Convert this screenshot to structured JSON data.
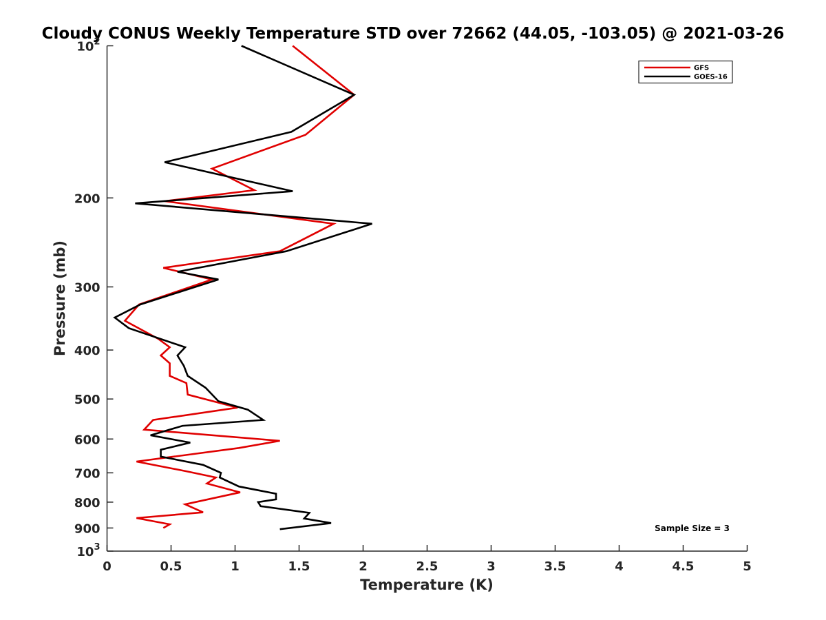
{
  "chart_data": {
    "type": "line",
    "title": "Cloudy CONUS Weekly Temperature STD over 72662 (44.05, -103.05) @ 2021-03-26",
    "xlabel": "Temperature (K)",
    "ylabel": "Pressure (mb)",
    "xlim": [
      0,
      5
    ],
    "ylim": [
      1000,
      100
    ],
    "y_scale": "log",
    "y_reversed": true,
    "grid": false,
    "legend_position": "top-right",
    "x_ticks": [
      {
        "value": 0,
        "label": "0"
      },
      {
        "value": 0.5,
        "label": "0.5"
      },
      {
        "value": 1,
        "label": "1"
      },
      {
        "value": 1.5,
        "label": "1.5"
      },
      {
        "value": 2,
        "label": "2"
      },
      {
        "value": 2.5,
        "label": "2.5"
      },
      {
        "value": 3,
        "label": "3"
      },
      {
        "value": 3.5,
        "label": "3.5"
      },
      {
        "value": 4,
        "label": "4"
      },
      {
        "value": 4.5,
        "label": "4.5"
      },
      {
        "value": 5,
        "label": "5"
      }
    ],
    "y_ticks": [
      {
        "value": 100,
        "base": "10",
        "exp": "2"
      },
      {
        "value": 200,
        "label": "200"
      },
      {
        "value": 300,
        "label": "300"
      },
      {
        "value": 400,
        "label": "400"
      },
      {
        "value": 500,
        "label": "500"
      },
      {
        "value": 600,
        "label": "600"
      },
      {
        "value": 700,
        "label": "700"
      },
      {
        "value": 800,
        "label": "800"
      },
      {
        "value": 900,
        "label": "900"
      },
      {
        "value": 1000,
        "base": "10",
        "exp": "3"
      }
    ],
    "series": [
      {
        "name": "GFS",
        "color": "#e00000",
        "points": [
          [
            1.45,
            100
          ],
          [
            1.93,
            125
          ],
          [
            1.55,
            150
          ],
          [
            0.82,
            175
          ],
          [
            1.15,
            193
          ],
          [
            0.45,
            203
          ],
          [
            1.77,
            225
          ],
          [
            1.35,
            255
          ],
          [
            0.44,
            275
          ],
          [
            0.82,
            290
          ],
          [
            0.25,
            325
          ],
          [
            0.14,
            350
          ],
          [
            0.4,
            380
          ],
          [
            0.49,
            395
          ],
          [
            0.42,
            410
          ],
          [
            0.49,
            425
          ],
          [
            0.49,
            450
          ],
          [
            0.62,
            465
          ],
          [
            0.63,
            490
          ],
          [
            1.02,
            520
          ],
          [
            0.36,
            550
          ],
          [
            0.29,
            575
          ],
          [
            1.35,
            605
          ],
          [
            1.03,
            625
          ],
          [
            0.23,
            665
          ],
          [
            0.62,
            695
          ],
          [
            0.85,
            715
          ],
          [
            0.78,
            735
          ],
          [
            1.04,
            765
          ],
          [
            0.61,
            808
          ],
          [
            0.75,
            838
          ],
          [
            0.23,
            860
          ],
          [
            0.49,
            885
          ],
          [
            0.44,
            900
          ]
        ]
      },
      {
        "name": "GOES-16",
        "color": "#000000",
        "points": [
          [
            1.05,
            100
          ],
          [
            1.93,
            125
          ],
          [
            1.44,
            148
          ],
          [
            0.45,
            170
          ],
          [
            1.45,
            194
          ],
          [
            0.22,
            205
          ],
          [
            2.07,
            225
          ],
          [
            1.4,
            255
          ],
          [
            0.55,
            280
          ],
          [
            0.87,
            290
          ],
          [
            0.26,
            325
          ],
          [
            0.06,
            345
          ],
          [
            0.17,
            362
          ],
          [
            0.61,
            395
          ],
          [
            0.55,
            410
          ],
          [
            0.6,
            430
          ],
          [
            0.63,
            450
          ],
          [
            0.77,
            475
          ],
          [
            0.87,
            505
          ],
          [
            1.1,
            525
          ],
          [
            1.22,
            550
          ],
          [
            0.59,
            565
          ],
          [
            0.34,
            590
          ],
          [
            0.65,
            610
          ],
          [
            0.42,
            630
          ],
          [
            0.42,
            650
          ],
          [
            0.75,
            675
          ],
          [
            0.89,
            700
          ],
          [
            0.88,
            715
          ],
          [
            1.03,
            745
          ],
          [
            1.32,
            770
          ],
          [
            1.32,
            790
          ],
          [
            1.18,
            800
          ],
          [
            1.2,
            815
          ],
          [
            1.58,
            840
          ],
          [
            1.54,
            862
          ],
          [
            1.75,
            880
          ],
          [
            1.35,
            905
          ]
        ]
      }
    ],
    "annotation": "Sample Size = 3"
  }
}
